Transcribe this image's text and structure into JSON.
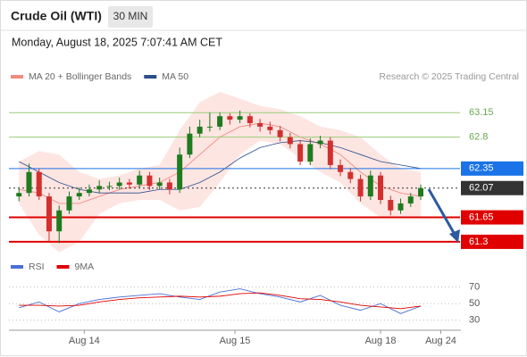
{
  "chart_data": {
    "type": "candlestick",
    "title": "Crude Oil (WTI)",
    "timeframe": "30 MIN",
    "timestamp": "Monday, August 18, 2025 7:07:41 AM CET",
    "attribution": "Research © 2025 Trading Central",
    "up_color": "#1e7b1e",
    "down_color": "#d32f2f",
    "x": [
      0,
      2,
      4,
      6,
      8,
      10,
      12,
      14,
      16,
      18,
      20,
      22,
      24,
      26,
      28,
      30,
      32,
      34,
      36,
      38,
      40,
      42,
      44,
      46,
      48,
      50,
      52,
      54,
      56,
      58,
      60,
      62,
      64,
      66,
      68,
      70,
      72,
      74,
      76,
      78,
      80
    ],
    "open": [
      61.95,
      62.0,
      62.3,
      61.95,
      61.45,
      61.75,
      61.95,
      62.0,
      62.05,
      62.1,
      62.1,
      62.15,
      62.12,
      62.25,
      62.1,
      62.15,
      62.05,
      62.55,
      62.85,
      62.95,
      62.95,
      63.1,
      63.05,
      63.1,
      63.0,
      62.95,
      62.9,
      62.8,
      62.7,
      62.45,
      62.7,
      62.75,
      62.4,
      62.3,
      62.2,
      61.95,
      62.25,
      61.9,
      61.75,
      61.85,
      61.95
    ],
    "high": [
      62.08,
      62.42,
      62.35,
      62.0,
      61.82,
      62.02,
      62.08,
      62.12,
      62.18,
      62.16,
      62.22,
      62.2,
      62.32,
      62.3,
      62.22,
      62.2,
      62.65,
      62.95,
      63.05,
      63.15,
      63.15,
      63.14,
      63.18,
      63.14,
      63.06,
      63.02,
      62.96,
      62.86,
      62.76,
      62.78,
      62.82,
      62.8,
      62.48,
      62.36,
      62.26,
      62.32,
      62.3,
      61.96,
      61.92,
      62.0,
      62.12
    ],
    "low": [
      61.88,
      61.95,
      61.9,
      61.3,
      61.28,
      61.7,
      61.9,
      61.95,
      62.0,
      62.04,
      62.05,
      62.06,
      62.08,
      62.04,
      62.05,
      61.98,
      62.0,
      62.5,
      62.8,
      62.88,
      62.9,
      62.98,
      63.0,
      62.94,
      62.88,
      62.84,
      62.74,
      62.64,
      62.4,
      62.4,
      62.64,
      62.34,
      62.24,
      62.14,
      61.88,
      61.9,
      61.84,
      61.68,
      61.7,
      61.8,
      61.9
    ],
    "close": [
      62.0,
      62.3,
      61.95,
      61.45,
      61.75,
      61.95,
      62.0,
      62.05,
      62.1,
      62.1,
      62.15,
      62.12,
      62.25,
      62.1,
      62.15,
      62.05,
      62.55,
      62.85,
      62.95,
      62.95,
      63.1,
      63.05,
      63.1,
      63.0,
      62.95,
      62.9,
      62.8,
      62.7,
      62.45,
      62.7,
      62.75,
      62.4,
      62.3,
      62.2,
      61.95,
      62.25,
      61.9,
      61.75,
      61.85,
      61.95,
      62.07
    ],
    "indicators": {
      "x": [
        0,
        4,
        8,
        12,
        16,
        20,
        24,
        28,
        32,
        36,
        40,
        44,
        48,
        52,
        56,
        60,
        64,
        68,
        72,
        76,
        80
      ],
      "series": [
        {
          "name": "MA 20 + Bollinger Bands",
          "color": "#f28b82",
          "values": [
            62.05,
            62.0,
            61.85,
            61.85,
            61.95,
            62.05,
            62.1,
            62.15,
            62.3,
            62.55,
            62.8,
            62.95,
            63.0,
            62.95,
            62.8,
            62.7,
            62.55,
            62.3,
            62.1,
            62.0,
            61.95
          ],
          "upper": [
            62.45,
            62.6,
            62.55,
            62.3,
            62.2,
            62.25,
            62.35,
            62.4,
            62.9,
            63.3,
            63.45,
            63.35,
            63.25,
            63.2,
            63.1,
            62.95,
            62.9,
            62.8,
            62.55,
            62.35,
            62.3
          ],
          "lower": [
            61.85,
            61.4,
            61.15,
            61.3,
            61.7,
            61.85,
            61.9,
            61.9,
            61.75,
            61.8,
            62.15,
            62.55,
            62.75,
            62.7,
            62.5,
            62.3,
            62.15,
            61.85,
            61.65,
            61.65,
            61.65
          ]
        },
        {
          "name": "MA 50",
          "color": "#2c4f8c",
          "values": [
            62.45,
            62.3,
            62.15,
            62.05,
            62.0,
            62.0,
            62.0,
            62.05,
            62.05,
            62.15,
            62.3,
            62.5,
            62.65,
            62.72,
            62.75,
            62.72,
            62.65,
            62.55,
            62.45,
            62.4,
            62.35
          ]
        }
      ]
    },
    "levels": [
      {
        "value": 63.15,
        "color": "#9acd7a",
        "style": "solid",
        "boxed": false
      },
      {
        "value": 62.8,
        "color": "#9acd7a",
        "style": "solid",
        "boxed": false
      },
      {
        "value": 62.35,
        "color": "#1a73e8",
        "style": "solid",
        "boxed": true
      },
      {
        "value": 62.07,
        "color": "#333333",
        "style": "dotted",
        "boxed": true
      },
      {
        "value": 61.65,
        "color": "#e00000",
        "style": "solid",
        "boxed": true
      },
      {
        "value": 61.3,
        "color": "#e00000",
        "style": "solid",
        "boxed": true
      }
    ],
    "xlim": [
      -2,
      88
    ],
    "ylim": [
      61.12,
      63.55
    ],
    "xticks": [
      {
        "value": 13,
        "label": "Aug 14"
      },
      {
        "value": 43,
        "label": "Aug 15"
      },
      {
        "value": 72,
        "label": "Aug 18"
      },
      {
        "value": 84,
        "label": "Aug 24"
      }
    ],
    "rsi": {
      "ylim": [
        20,
        88
      ],
      "yticks": [
        30,
        50,
        70
      ],
      "series": [
        {
          "name": "RSI",
          "color": "#4a6fd6",
          "values": [
            45,
            52,
            40,
            50,
            55,
            58,
            60,
            62,
            58,
            55,
            64,
            68,
            62,
            58,
            52,
            60,
            48,
            42,
            50,
            38,
            47
          ]
        },
        {
          "name": "9MA",
          "color": "#e00000",
          "values": [
            48,
            48,
            47,
            48,
            52,
            55,
            57,
            58,
            59,
            58,
            59,
            62,
            63,
            60,
            56,
            55,
            52,
            48,
            46,
            44,
            47
          ]
        }
      ]
    }
  }
}
